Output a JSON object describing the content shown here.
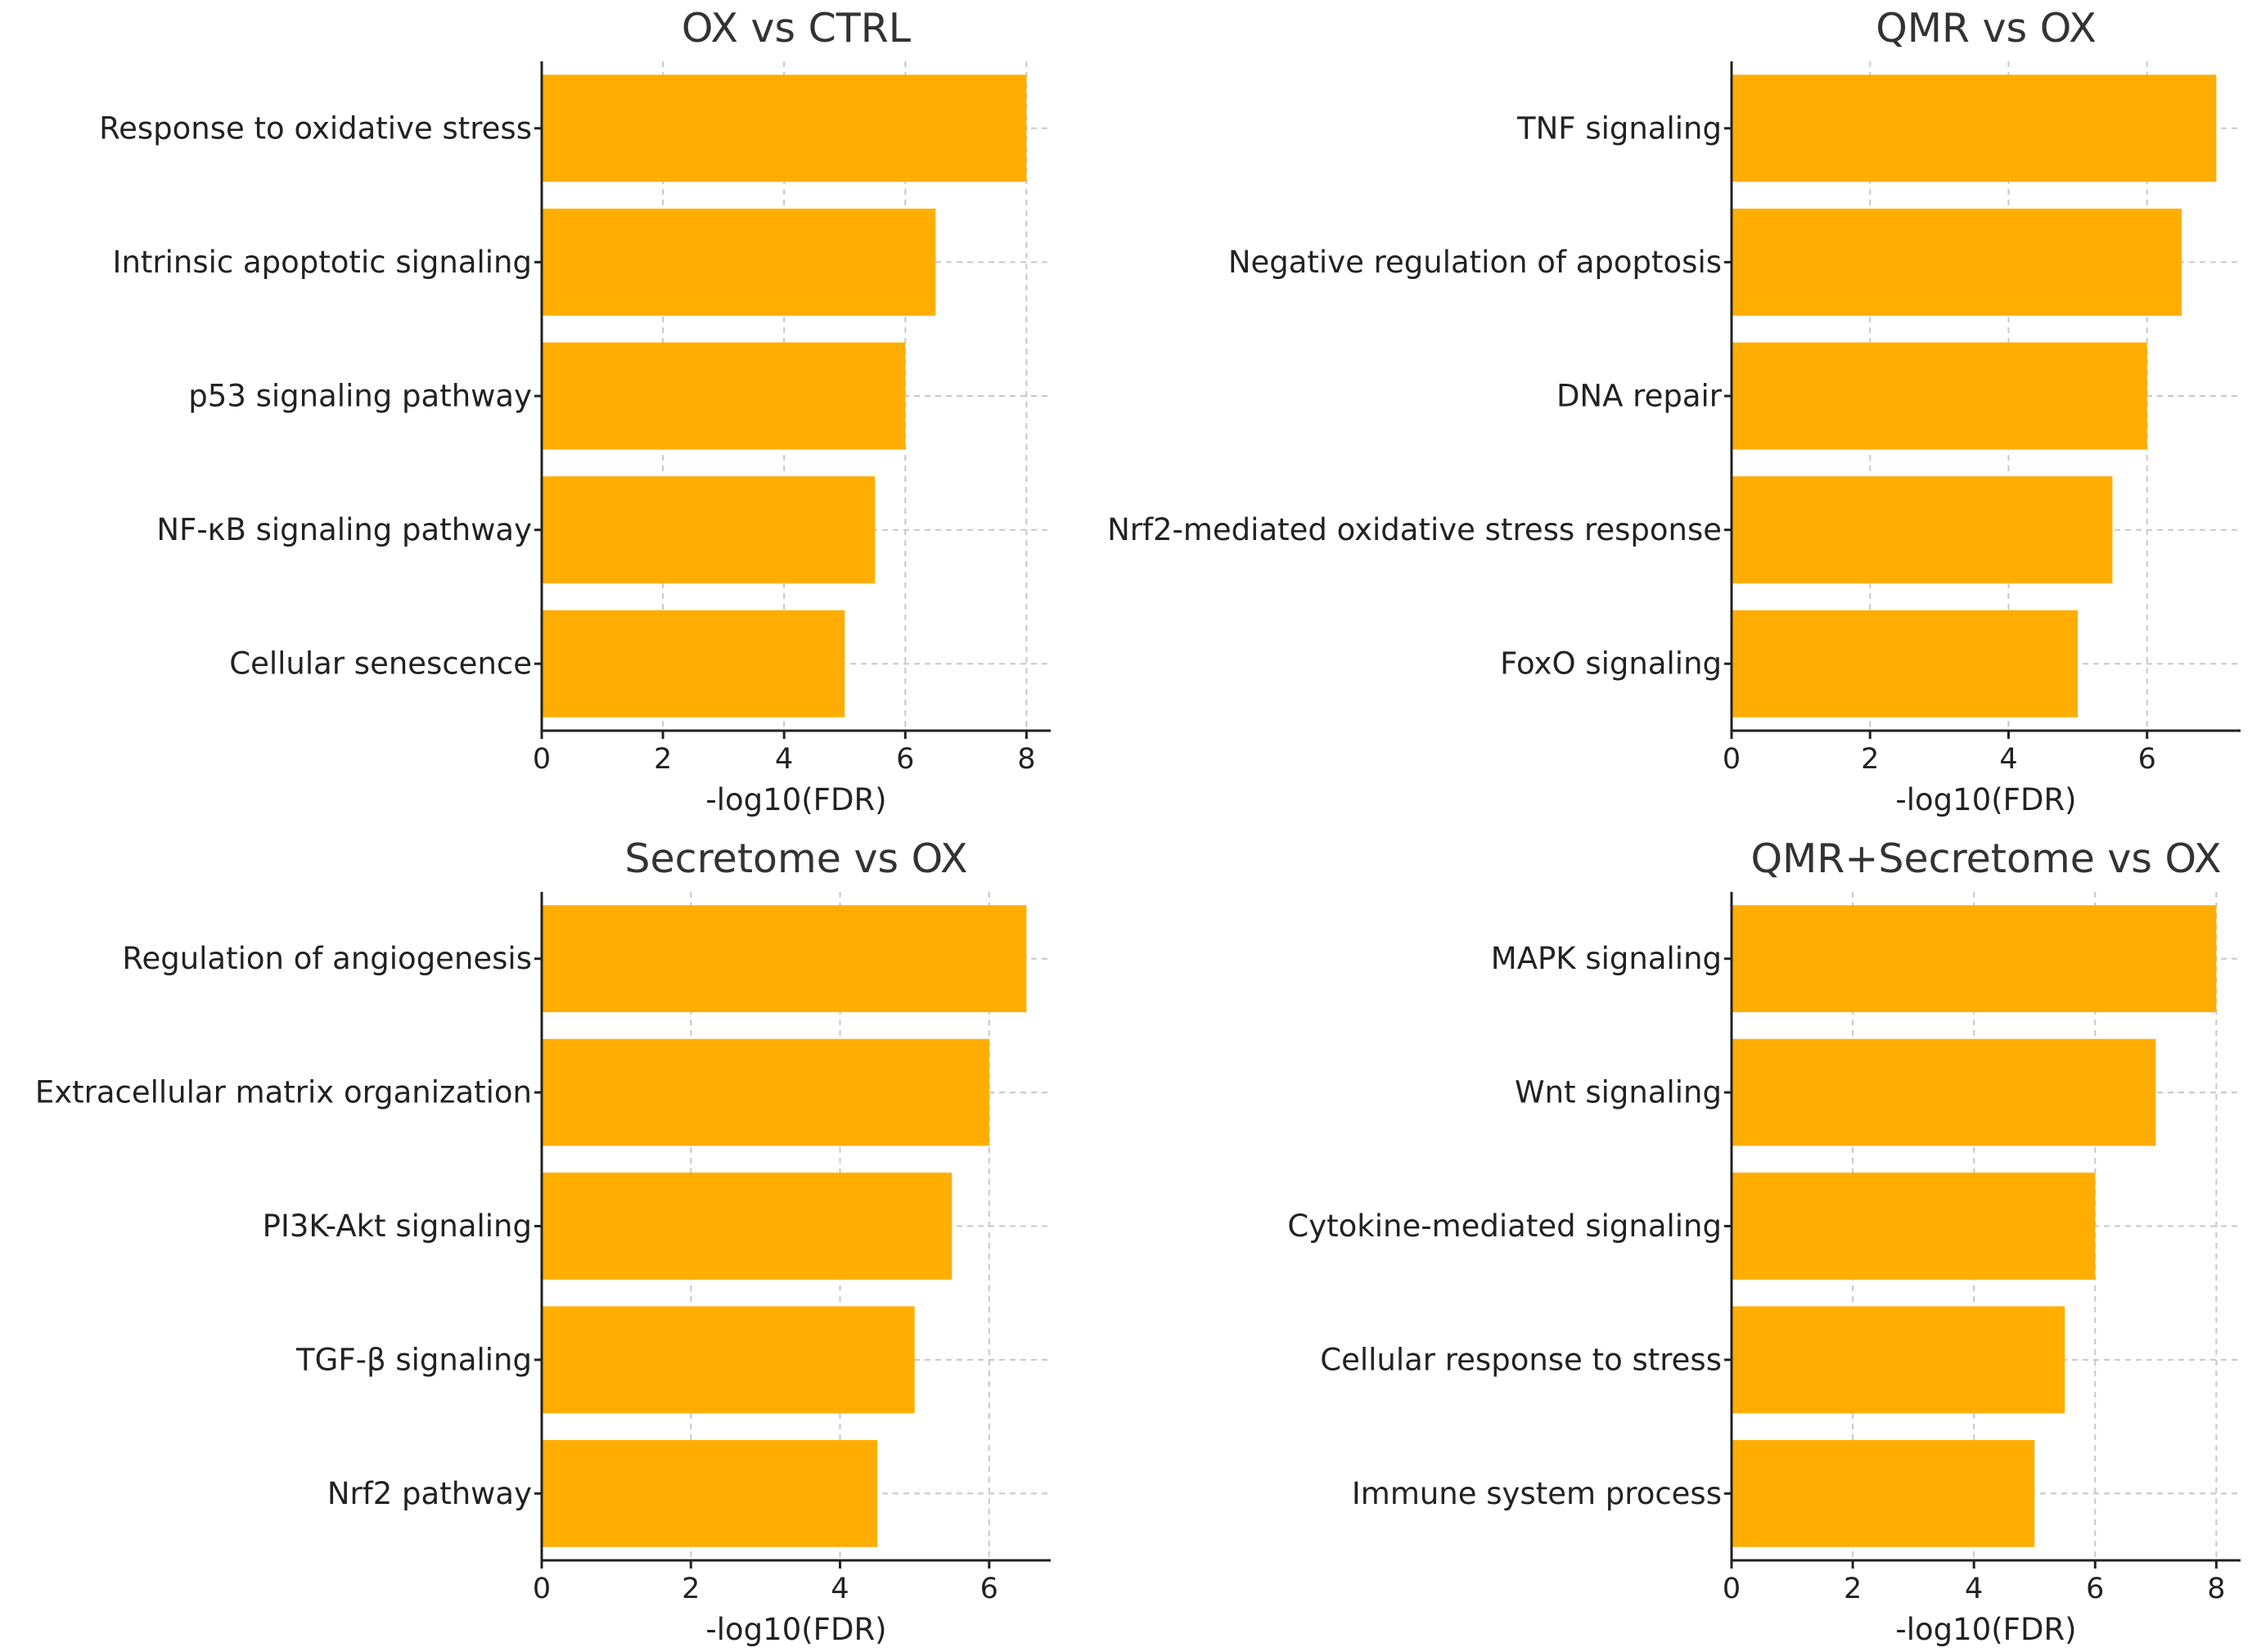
{
  "chart_data": [
    {
      "type": "bar",
      "orientation": "horizontal",
      "title": "OX vs CTRL",
      "categories": [
        "Response to oxidative stress",
        "Intrinsic apoptotic signaling",
        "p53 signaling pathway",
        "NF-κB signaling pathway",
        "Cellular senescence"
      ],
      "values": [
        8.0,
        6.5,
        6.0,
        5.5,
        5.0
      ],
      "xlabel": "-log10(FDR)",
      "ylabel": "",
      "xlim": [
        0,
        8.4
      ],
      "xticks": [
        "0",
        "2",
        "4",
        "6",
        "8"
      ],
      "grid": true,
      "color": "#FFAD00"
    },
    {
      "type": "bar",
      "orientation": "horizontal",
      "title": "QMR vs OX",
      "categories": [
        "TNF signaling",
        "Negative regulation of apoptosis",
        "DNA repair",
        "Nrf2-mediated oxidative stress response",
        "FoxO signaling"
      ],
      "values": [
        7.0,
        6.5,
        6.0,
        5.5,
        5.0
      ],
      "xlabel": "-log10(FDR)",
      "ylabel": "",
      "xlim": [
        0,
        7.35
      ],
      "xticks": [
        "0",
        "2",
        "4",
        "6"
      ],
      "grid": true,
      "color": "#FFAD00"
    },
    {
      "type": "bar",
      "orientation": "horizontal",
      "title": "Secretome vs OX",
      "categories": [
        "Regulation of angiogenesis",
        "Extracellular matrix organization",
        "PI3K-Akt signaling",
        "TGF-β signaling",
        "Nrf2 pathway"
      ],
      "values": [
        6.5,
        6.0,
        5.5,
        5.0,
        4.5
      ],
      "xlabel": "-log10(FDR)",
      "ylabel": "",
      "xlim": [
        0,
        6.825
      ],
      "xticks": [
        "0",
        "2",
        "4",
        "6"
      ],
      "grid": true,
      "color": "#FFAD00"
    },
    {
      "type": "bar",
      "orientation": "horizontal",
      "title": "QMR+Secretome vs OX",
      "categories": [
        "MAPK signaling",
        "Wnt signaling",
        "Cytokine-mediated signaling",
        "Cellular response to stress",
        "Immune system process"
      ],
      "values": [
        8.0,
        7.0,
        6.0,
        5.5,
        5.0
      ],
      "xlabel": "-log10(FDR)",
      "ylabel": "",
      "xlim": [
        0,
        8.4
      ],
      "xticks": [
        "0",
        "2",
        "4",
        "6",
        "8"
      ],
      "grid": true,
      "color": "#FFAD00"
    }
  ]
}
